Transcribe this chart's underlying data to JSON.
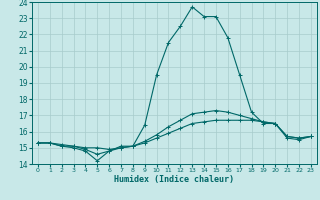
{
  "xlabel": "Humidex (Indice chaleur)",
  "xlim": [
    -0.5,
    23.5
  ],
  "ylim": [
    14,
    24
  ],
  "yticks": [
    14,
    15,
    16,
    17,
    18,
    19,
    20,
    21,
    22,
    23,
    24
  ],
  "xticks": [
    0,
    1,
    2,
    3,
    4,
    5,
    6,
    7,
    8,
    9,
    10,
    11,
    12,
    13,
    14,
    15,
    16,
    17,
    18,
    19,
    20,
    21,
    22,
    23
  ],
  "bg_color": "#c8e8e8",
  "grid_color": "#a8cccc",
  "line_color": "#006868",
  "lines": [
    {
      "x": [
        0,
        1,
        2,
        3,
        4,
        5,
        6,
        7,
        8,
        9,
        10,
        11,
        12,
        13,
        14,
        15,
        16,
        17,
        18,
        19,
        20,
        21,
        22,
        23
      ],
      "y": [
        15.3,
        15.3,
        15.1,
        15.0,
        14.8,
        14.2,
        14.8,
        15.1,
        15.1,
        16.4,
        19.5,
        21.5,
        22.5,
        23.7,
        23.1,
        23.1,
        21.8,
        19.5,
        17.2,
        16.5,
        16.5,
        15.6,
        15.5,
        15.7
      ]
    },
    {
      "x": [
        0,
        1,
        2,
        3,
        4,
        5,
        6,
        7,
        8,
        9,
        10,
        11,
        12,
        13,
        14,
        15,
        16,
        17,
        18,
        19,
        20,
        21,
        22,
        23
      ],
      "y": [
        15.3,
        15.3,
        15.1,
        15.1,
        15.0,
        15.0,
        14.9,
        15.0,
        15.1,
        15.3,
        15.6,
        15.9,
        16.2,
        16.5,
        16.6,
        16.7,
        16.7,
        16.7,
        16.7,
        16.6,
        16.5,
        15.7,
        15.6,
        15.7
      ]
    },
    {
      "x": [
        0,
        1,
        2,
        3,
        4,
        5,
        6,
        7,
        8,
        9,
        10,
        11,
        12,
        13,
        14,
        15,
        16,
        17,
        18,
        19,
        20,
        21,
        22,
        23
      ],
      "y": [
        15.3,
        15.3,
        15.2,
        15.1,
        14.9,
        14.6,
        14.8,
        15.0,
        15.1,
        15.4,
        15.8,
        16.3,
        16.7,
        17.1,
        17.2,
        17.3,
        17.2,
        17.0,
        16.8,
        16.6,
        16.5,
        15.7,
        15.6,
        15.7
      ]
    }
  ]
}
